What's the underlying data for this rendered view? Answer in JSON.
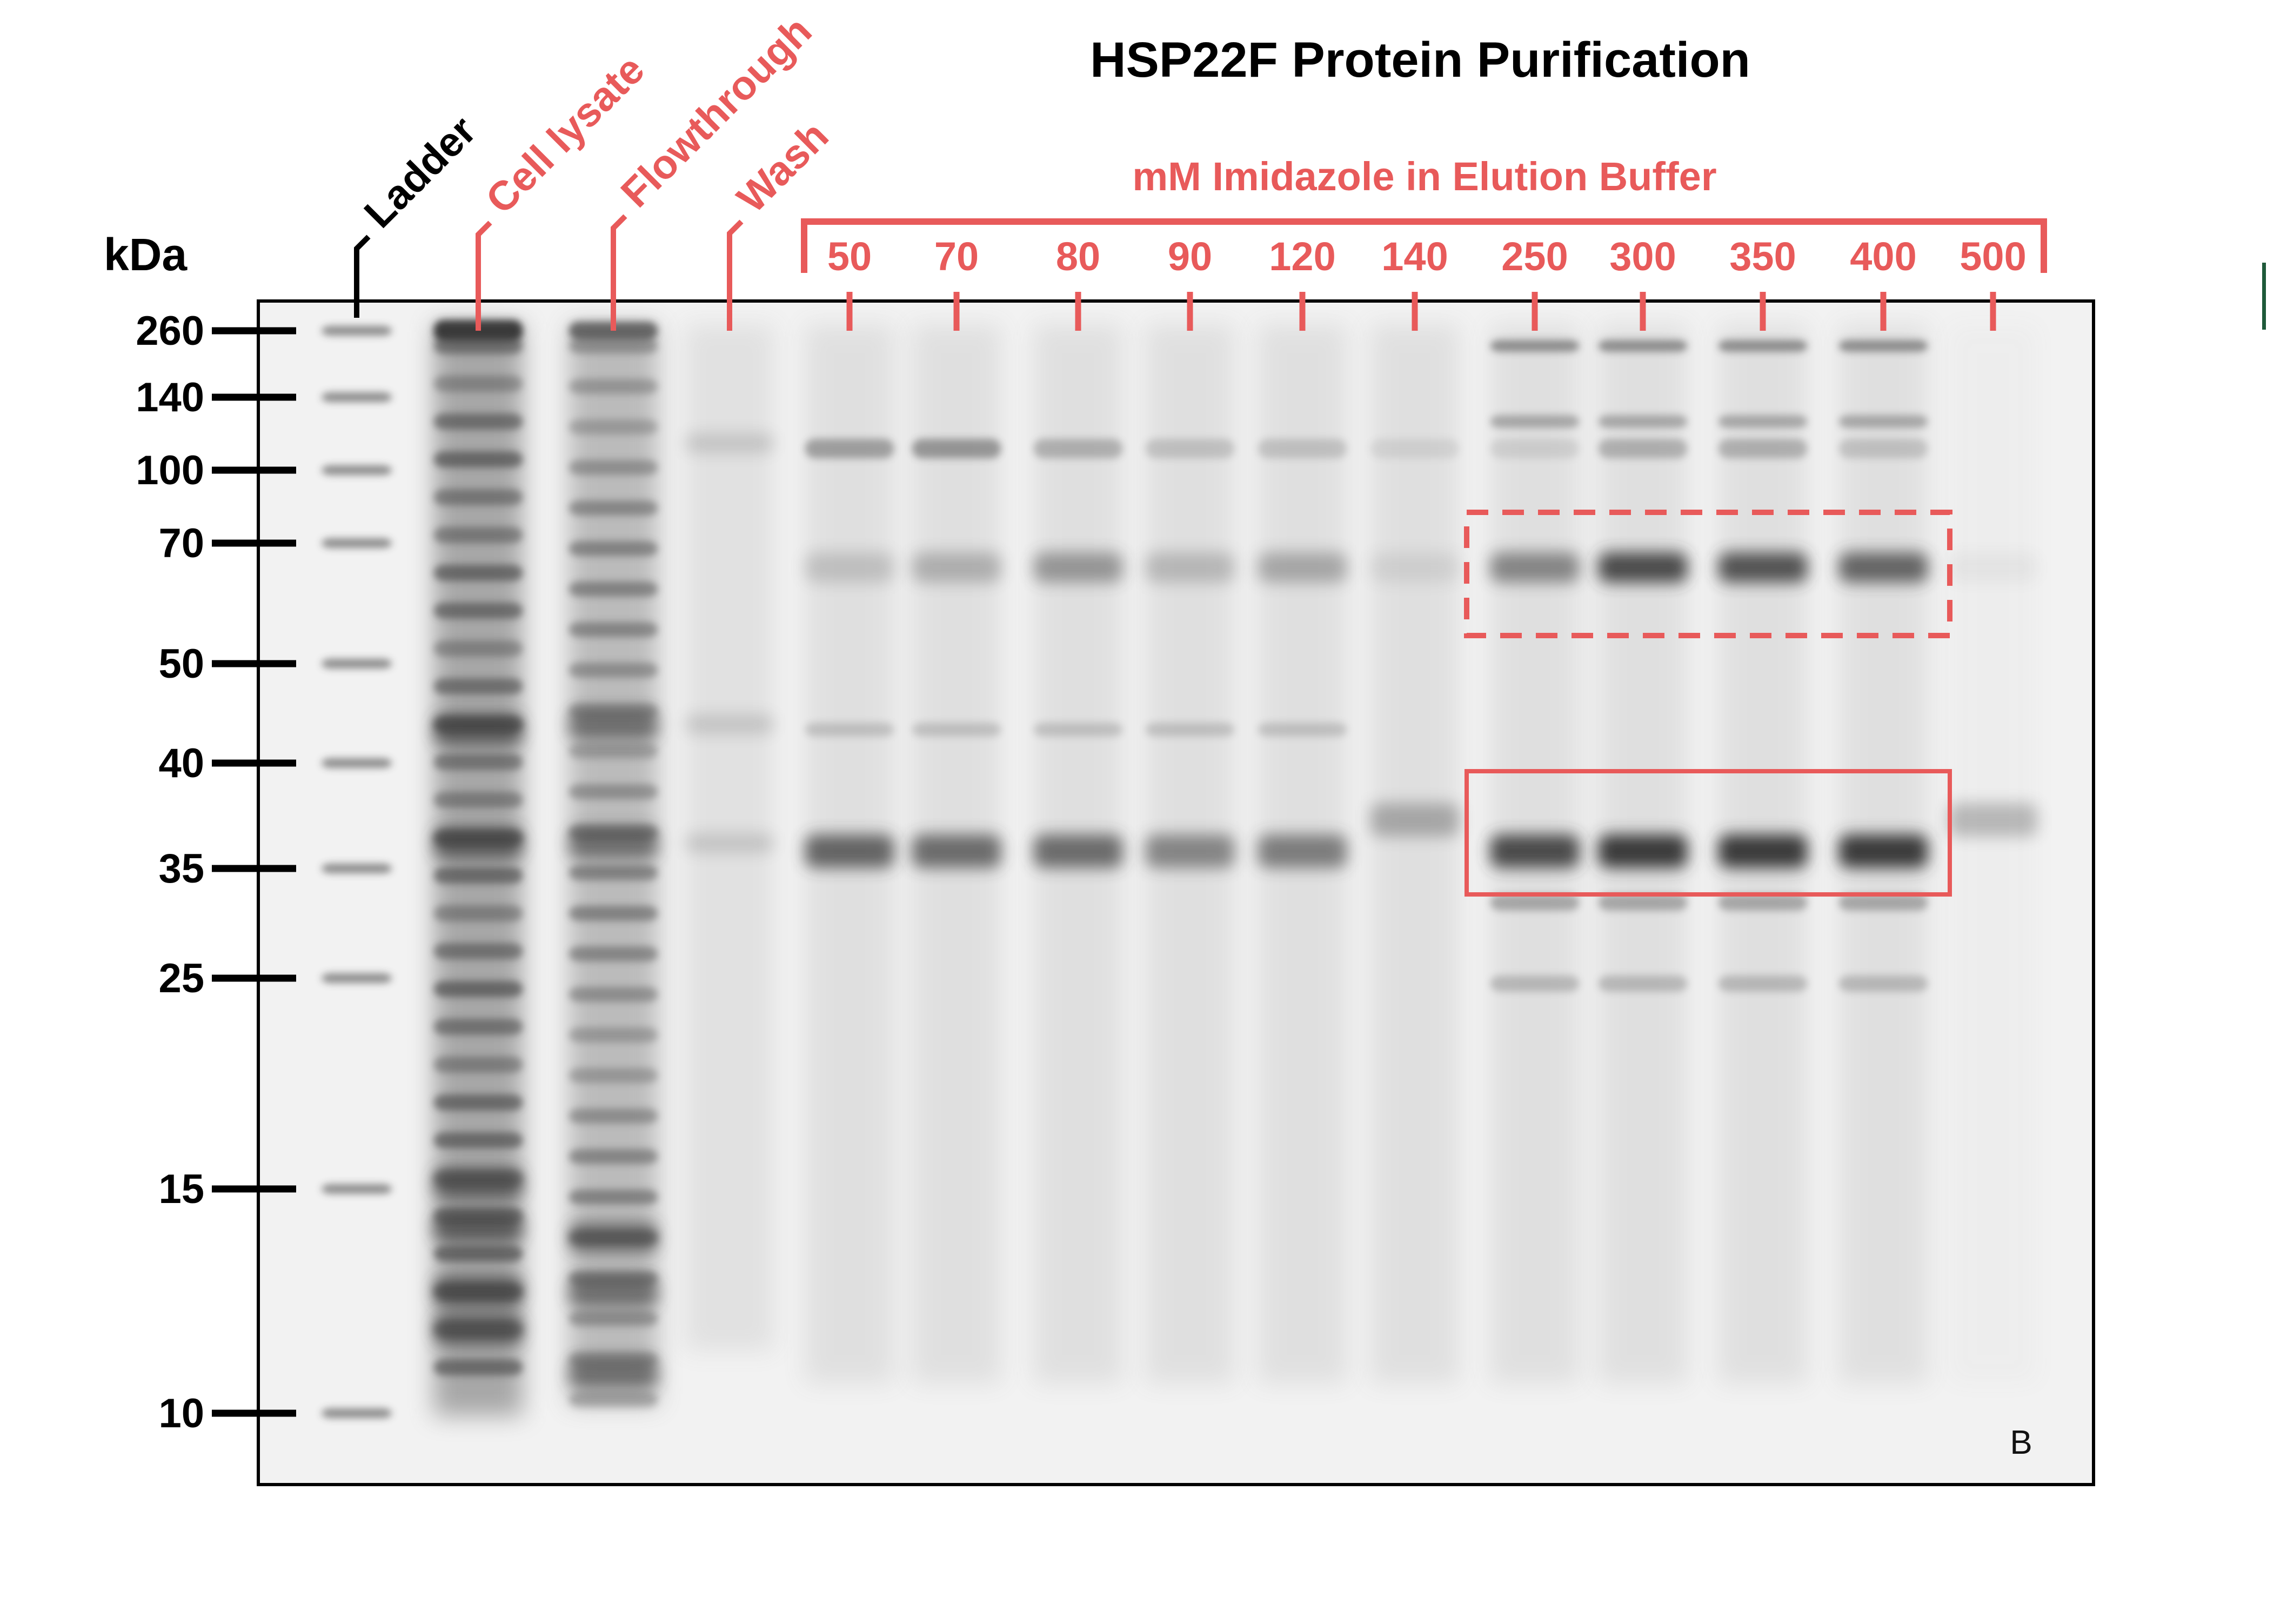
{
  "title": "HSP22F Protein Purification",
  "corner_mark": "B",
  "axis_unit": "kDa",
  "elution_header": "mM Imidazole in Elution Buffer",
  "colors": {
    "accent": "#e85a5a",
    "text": "#000000",
    "gel_background": "#f2f2f2",
    "band": "#3a3a3a",
    "side_mark": "#1f5a3a"
  },
  "markers": [
    {
      "label": "260",
      "kda": 260
    },
    {
      "label": "140",
      "kda": 140
    },
    {
      "label": "100",
      "kda": 100
    },
    {
      "label": "70",
      "kda": 70
    },
    {
      "label": "50",
      "kda": 50
    },
    {
      "label": "40",
      "kda": 40
    },
    {
      "label": "35",
      "kda": 35
    },
    {
      "label": "25",
      "kda": 25
    },
    {
      "label": "15",
      "kda": 15
    },
    {
      "label": "10",
      "kda": 10
    }
  ],
  "sample_lanes": [
    {
      "label": "Ladder",
      "color": "text"
    },
    {
      "label": "Cell lysate",
      "color": "accent"
    },
    {
      "label": "Flowthrough",
      "color": "accent"
    },
    {
      "label": "Wash",
      "color": "accent"
    }
  ],
  "elution_lanes": [
    {
      "label": "50"
    },
    {
      "label": "70"
    },
    {
      "label": "80"
    },
    {
      "label": "90"
    },
    {
      "label": "120"
    },
    {
      "label": "140"
    },
    {
      "label": "250"
    },
    {
      "label": "300"
    },
    {
      "label": "350"
    },
    {
      "label": "400"
    },
    {
      "label": "500"
    }
  ],
  "highlights": [
    {
      "name": "dashed-box-70kda",
      "style": "dashed"
    },
    {
      "name": "solid-box-35kda",
      "style": "solid"
    }
  ]
}
